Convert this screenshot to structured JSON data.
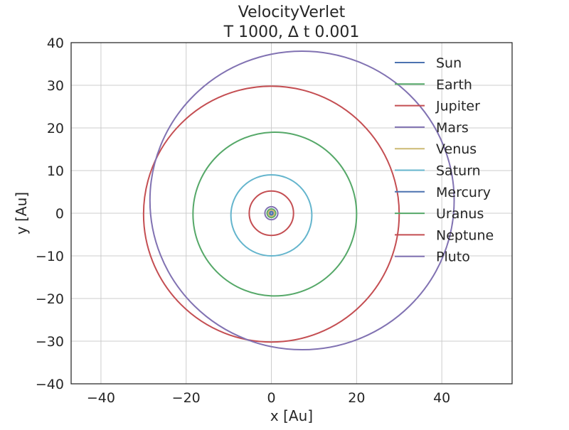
{
  "chart_data": {
    "type": "line",
    "title": "VelocityVerlet",
    "subtitle": "T 1000, ∆ t 0.001",
    "xlabel": "x [Au]",
    "ylabel": "y [Au]",
    "xlim": [
      -47,
      56.5
    ],
    "ylim": [
      -40,
      40
    ],
    "xticks": [
      -40,
      -20,
      0,
      20,
      40
    ],
    "yticks": [
      -40,
      -30,
      -20,
      -10,
      0,
      10,
      20,
      30,
      40
    ],
    "xtick_labels": [
      "−40",
      "−20",
      "0",
      "20",
      "40"
    ],
    "ytick_labels": [
      "−40",
      "−30",
      "−20",
      "−10",
      "0",
      "10",
      "20",
      "30",
      "40"
    ],
    "grid": true,
    "legend_position": "top-right",
    "series": [
      {
        "name": "Sun",
        "color": "#4c72b0",
        "orbit": {
          "cx": 0.0,
          "cy": 0.0,
          "a": 0.05,
          "b": 0.05
        }
      },
      {
        "name": "Earth",
        "color": "#55a868",
        "orbit": {
          "cx": 0.0,
          "cy": 0.0,
          "a": 1.0,
          "b": 1.0
        }
      },
      {
        "name": "Jupiter",
        "color": "#c44e52",
        "orbit": {
          "cx": 0.0,
          "cy": 0.0,
          "a": 5.2,
          "b": 5.2
        }
      },
      {
        "name": "Mars",
        "color": "#8172b2",
        "orbit": {
          "cx": 0.0,
          "cy": 0.0,
          "a": 1.52,
          "b": 1.52
        }
      },
      {
        "name": "Venus",
        "color": "#ccb974",
        "orbit": {
          "cx": 0.0,
          "cy": 0.0,
          "a": 0.72,
          "b": 0.72
        }
      },
      {
        "name": "Saturn",
        "color": "#64b5cd",
        "orbit": {
          "cx": 0.0,
          "cy": -0.5,
          "a": 9.5,
          "b": 9.5
        }
      },
      {
        "name": "Mercury",
        "color": "#4c72b0",
        "orbit": {
          "cx": 0.0,
          "cy": 0.0,
          "a": 0.39,
          "b": 0.39
        }
      },
      {
        "name": "Uranus",
        "color": "#55a868",
        "orbit": {
          "cx": 0.8,
          "cy": -0.2,
          "a": 19.2,
          "b": 19.2
        }
      },
      {
        "name": "Neptune",
        "color": "#c44e52",
        "orbit": {
          "cx": 0.0,
          "cy": -0.2,
          "a": 30.0,
          "b": 30.0
        }
      },
      {
        "name": "Pluto",
        "color": "#8172b2",
        "orbit": {
          "cx": 7.2,
          "cy": 3.0,
          "a": 35.7,
          "b": 35.0
        }
      }
    ]
  }
}
